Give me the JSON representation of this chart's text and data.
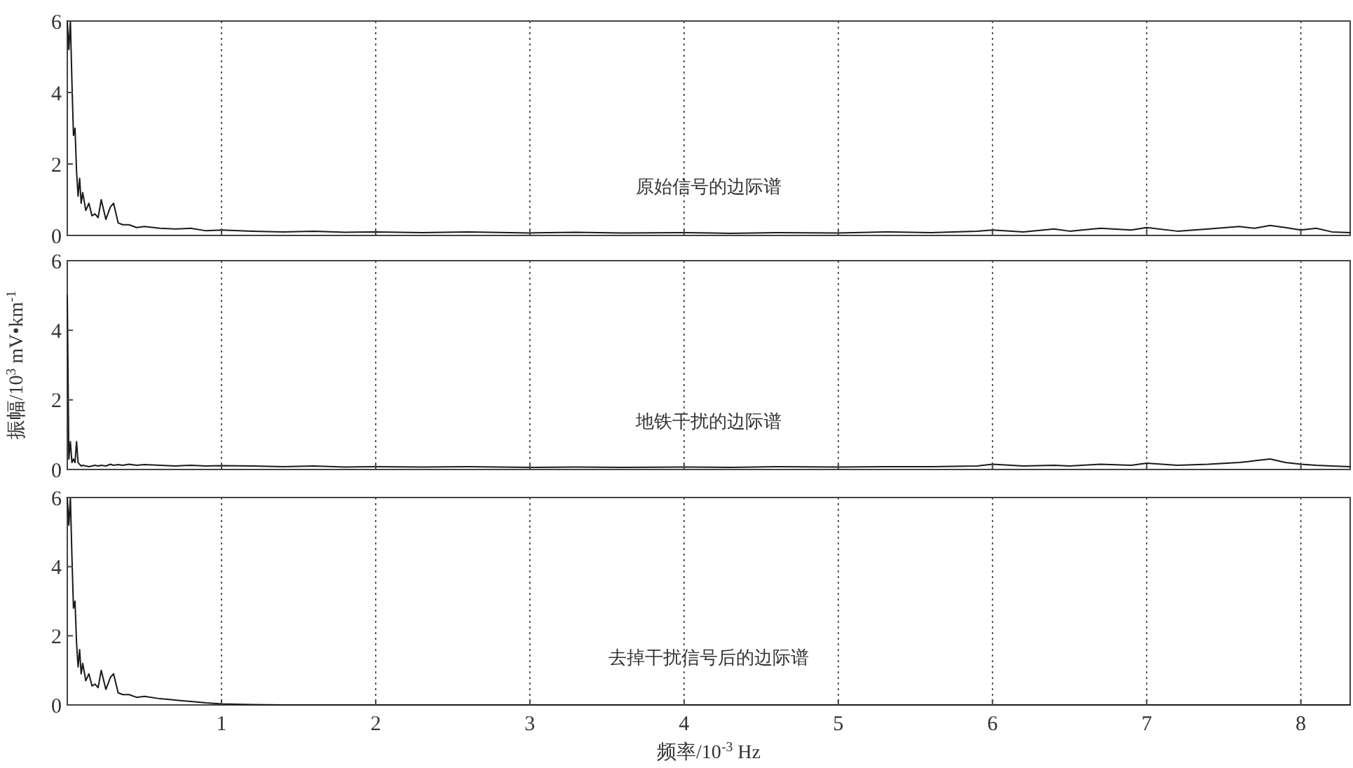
{
  "chart_data": [
    {
      "type": "line",
      "annotations": [
        "原始信号的边际谱"
      ],
      "x": [
        0,
        0.01,
        0.02,
        0.03,
        0.04,
        0.05,
        0.06,
        0.07,
        0.08,
        0.09,
        0.1,
        0.12,
        0.14,
        0.16,
        0.18,
        0.2,
        0.22,
        0.25,
        0.28,
        0.3,
        0.33,
        0.36,
        0.4,
        0.45,
        0.5,
        0.6,
        0.7,
        0.8,
        0.9,
        1,
        1.2,
        1.4,
        1.6,
        1.8,
        2,
        2.3,
        2.6,
        3,
        3.3,
        3.6,
        4,
        4.3,
        4.6,
        5,
        5.3,
        5.6,
        5.9,
        6,
        6.2,
        6.4,
        6.5,
        6.7,
        6.9,
        7,
        7.2,
        7.4,
        7.6,
        7.7,
        7.8,
        7.9,
        8,
        8.1,
        8.2,
        8.32
      ],
      "series": [
        {
          "color": "#1a1a1a",
          "values": [
            6,
            5.2,
            6,
            4.3,
            2.8,
            3,
            1.8,
            1.1,
            1.6,
            0.9,
            1.2,
            0.7,
            0.9,
            0.55,
            0.6,
            0.5,
            1,
            0.45,
            0.8,
            0.9,
            0.35,
            0.3,
            0.3,
            0.22,
            0.25,
            0.2,
            0.18,
            0.2,
            0.13,
            0.15,
            0.12,
            0.1,
            0.12,
            0.09,
            0.1,
            0.08,
            0.1,
            0.07,
            0.09,
            0.07,
            0.08,
            0.06,
            0.08,
            0.07,
            0.1,
            0.08,
            0.12,
            0.15,
            0.1,
            0.18,
            0.12,
            0.2,
            0.15,
            0.22,
            0.12,
            0.18,
            0.25,
            0.2,
            0.28,
            0.22,
            0.15,
            0.2,
            0.1,
            0.08
          ]
        }
      ],
      "xlim": [
        0,
        8.32
      ],
      "xticks": [
        1,
        2,
        3,
        4,
        5,
        6,
        7,
        8
      ],
      "ylim": [
        0,
        6
      ],
      "yticks": [
        0,
        2,
        4,
        6
      ],
      "grid": "x",
      "tick_labels": "y",
      "line_style": "solid"
    },
    {
      "type": "line",
      "ylabel": "振幅/10$^{3}$ mV•km$^{-1}$",
      "annotations": [
        "地铁干扰的边际谱"
      ],
      "x": [
        0,
        0.01,
        0.02,
        0.03,
        0.04,
        0.05,
        0.06,
        0.07,
        0.08,
        0.09,
        0.1,
        0.12,
        0.14,
        0.16,
        0.18,
        0.2,
        0.22,
        0.25,
        0.28,
        0.3,
        0.33,
        0.36,
        0.4,
        0.45,
        0.5,
        0.6,
        0.7,
        0.8,
        0.9,
        1,
        1.2,
        1.4,
        1.6,
        1.8,
        2,
        2.3,
        2.6,
        3,
        3.3,
        3.6,
        4,
        4.3,
        4.6,
        5,
        5.3,
        5.6,
        5.9,
        6,
        6.2,
        6.4,
        6.5,
        6.7,
        6.9,
        7,
        7.2,
        7.4,
        7.6,
        7.7,
        7.8,
        7.9,
        8,
        8.1,
        8.2,
        8.32
      ],
      "series": [
        {
          "color": "#1a1a1a",
          "values": [
            5,
            0.3,
            0.8,
            0.2,
            0.3,
            0.2,
            0.8,
            0.2,
            0.15,
            0.1,
            0.12,
            0.1,
            0.08,
            0.1,
            0.12,
            0.1,
            0.12,
            0.1,
            0.15,
            0.12,
            0.14,
            0.12,
            0.15,
            0.12,
            0.14,
            0.12,
            0.1,
            0.12,
            0.1,
            0.11,
            0.1,
            0.08,
            0.1,
            0.07,
            0.08,
            0.07,
            0.08,
            0.06,
            0.07,
            0.06,
            0.07,
            0.06,
            0.08,
            0.07,
            0.08,
            0.08,
            0.1,
            0.15,
            0.1,
            0.12,
            0.1,
            0.15,
            0.12,
            0.18,
            0.12,
            0.15,
            0.2,
            0.25,
            0.3,
            0.2,
            0.15,
            0.12,
            0.1,
            0.08
          ]
        }
      ],
      "xlim": [
        0,
        8.32
      ],
      "xticks": [
        1,
        2,
        3,
        4,
        5,
        6,
        7,
        8
      ],
      "ylim": [
        0,
        6
      ],
      "yticks": [
        0,
        2,
        4,
        6
      ],
      "grid": "x",
      "tick_labels": "y",
      "line_style": "solid"
    },
    {
      "type": "line",
      "xlabel": "频率/10$^{-3}$ Hz",
      "annotations": [
        "去掉干扰信号后的边际谱"
      ],
      "x": [
        0,
        0.01,
        0.02,
        0.03,
        0.04,
        0.05,
        0.06,
        0.07,
        0.08,
        0.09,
        0.1,
        0.12,
        0.14,
        0.16,
        0.18,
        0.2,
        0.22,
        0.25,
        0.28,
        0.3,
        0.33,
        0.36,
        0.4,
        0.45,
        0.5,
        0.6,
        0.7,
        0.8,
        0.9,
        1,
        1.2,
        1.4,
        1.6,
        1.8,
        2,
        2.3,
        2.6,
        3,
        3.3,
        3.6,
        4,
        4.3,
        4.6,
        5,
        5.3,
        5.6,
        5.9,
        6,
        6.2,
        6.4,
        6.5,
        6.7,
        6.9,
        7,
        7.2,
        7.4,
        7.6,
        7.7,
        7.8,
        7.9,
        8,
        8.1,
        8.2,
        8.32
      ],
      "series": [
        {
          "color": "#1a1a1a",
          "values": [
            6,
            5.2,
            6,
            4.3,
            2.8,
            3,
            1.8,
            1.1,
            1.6,
            0.9,
            1.2,
            0.7,
            0.9,
            0.55,
            0.6,
            0.5,
            1,
            0.45,
            0.8,
            0.9,
            0.35,
            0.3,
            0.3,
            0.22,
            0.25,
            0.18,
            0.14,
            0.1,
            0.06,
            0.03,
            0.01,
            0,
            0,
            0,
            0,
            0,
            0,
            0,
            0,
            0,
            0,
            0,
            0,
            0,
            0,
            0,
            0,
            0,
            0,
            0,
            0,
            0,
            0,
            0,
            0,
            0,
            0,
            0,
            0,
            0,
            0,
            0,
            0,
            0
          ]
        }
      ],
      "xlim": [
        0,
        8.32
      ],
      "xticks": [
        1,
        2,
        3,
        4,
        5,
        6,
        7,
        8
      ],
      "ylim": [
        0,
        6
      ],
      "yticks": [
        0,
        2,
        4,
        6
      ],
      "grid": "x",
      "line_style": "solid"
    }
  ]
}
